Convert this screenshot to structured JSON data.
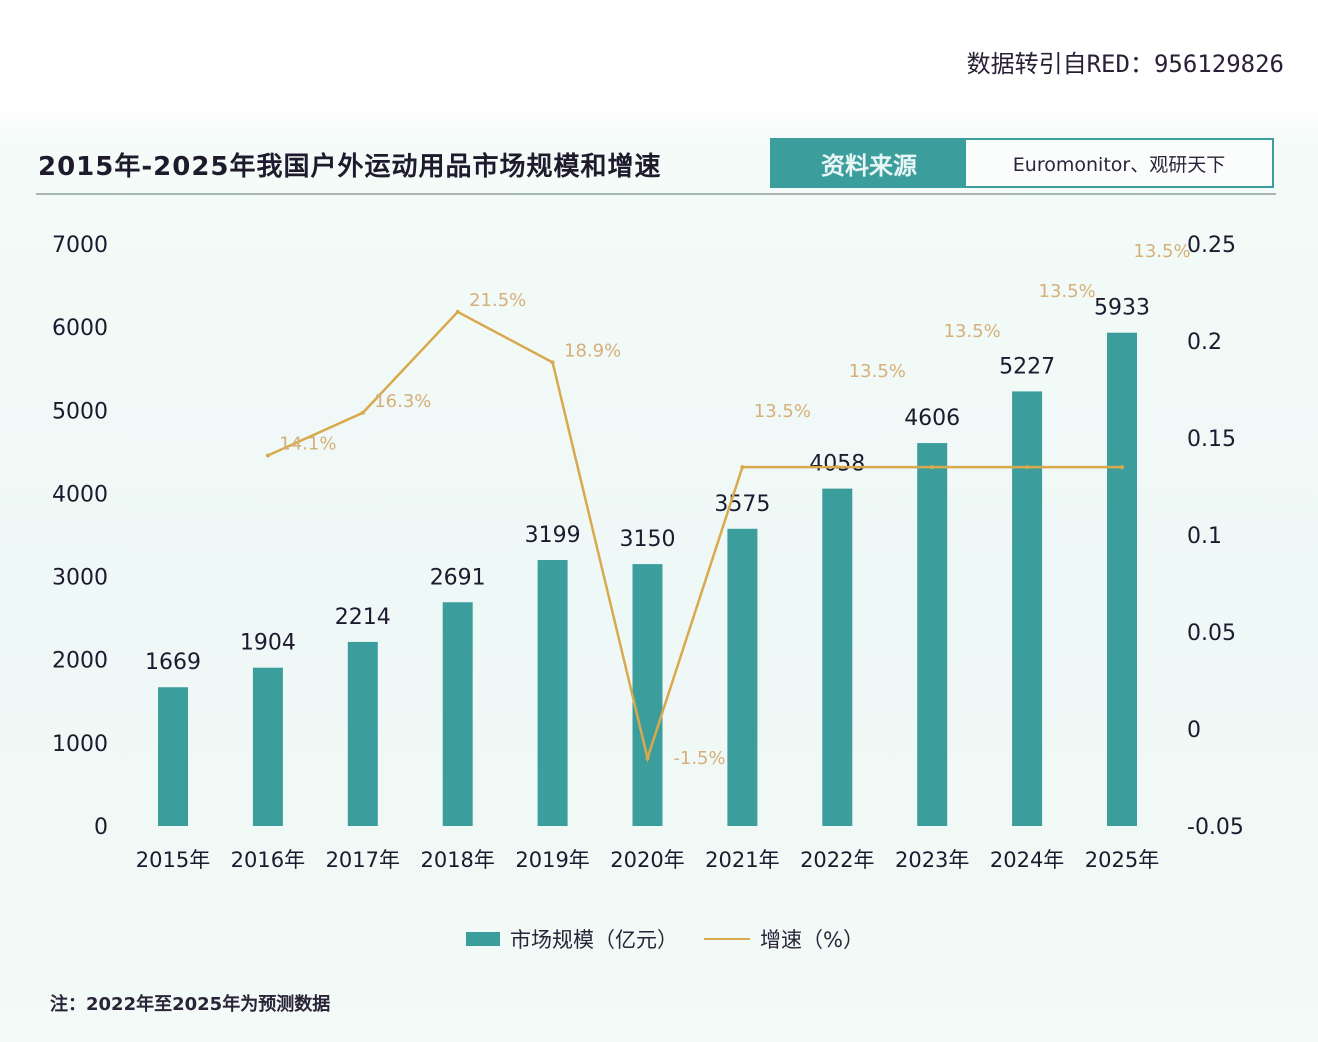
{
  "watermark": "数据转引自RED：956129826",
  "header": {
    "title": "2015年-2025年我国户外运动用品市场规模和增速",
    "source_label": "资料来源",
    "source_value": "Euromonitor、观研天下"
  },
  "note": "注：2022年至2025年为预测数据",
  "colors": {
    "bar": "#3c9e9c",
    "line": "#d9a94e",
    "line_label": "#d6b07a"
  },
  "chart_data": {
    "type": "bar+line",
    "title": "2015年-2025年我国户外运动用品市场规模和增速",
    "categories": [
      "2015年",
      "2016年",
      "2017年",
      "2018年",
      "2019年",
      "2020年",
      "2021年",
      "2022年",
      "2023年",
      "2024年",
      "2025年"
    ],
    "series": [
      {
        "name": "市场规模（亿元）",
        "type": "bar",
        "axis": "left",
        "values": [
          1669,
          1904,
          2214,
          2691,
          3199,
          3150,
          3575,
          4058,
          4606,
          5227,
          5933
        ],
        "labels": [
          "1669",
          "1904",
          "2214",
          "2691",
          "3199",
          "3150",
          "3575",
          "4058",
          "4606",
          "5227",
          "5933"
        ]
      },
      {
        "name": "增速（%）",
        "type": "line",
        "axis": "right",
        "values": [
          null,
          0.141,
          0.163,
          0.215,
          0.189,
          -0.015,
          0.135,
          0.135,
          0.135,
          0.135,
          0.135
        ],
        "labels": [
          "",
          "14.1%",
          "16.3%",
          "21.5%",
          "18.9%",
          "-1.5%",
          "13.5%",
          "13.5%",
          "13.5%",
          "13.5%",
          "13.5%"
        ]
      }
    ],
    "y_left": {
      "range": [
        0,
        7000
      ],
      "ticks": [
        "0",
        "1000",
        "2000",
        "3000",
        "4000",
        "5000",
        "6000",
        "7000"
      ]
    },
    "y_right": {
      "range": [
        -0.05,
        0.25
      ],
      "ticks": [
        "-0.05",
        "0",
        "0.05",
        "0.1",
        "0.15",
        "0.2",
        "0.25"
      ]
    },
    "grid": false,
    "legend": "bottom"
  }
}
